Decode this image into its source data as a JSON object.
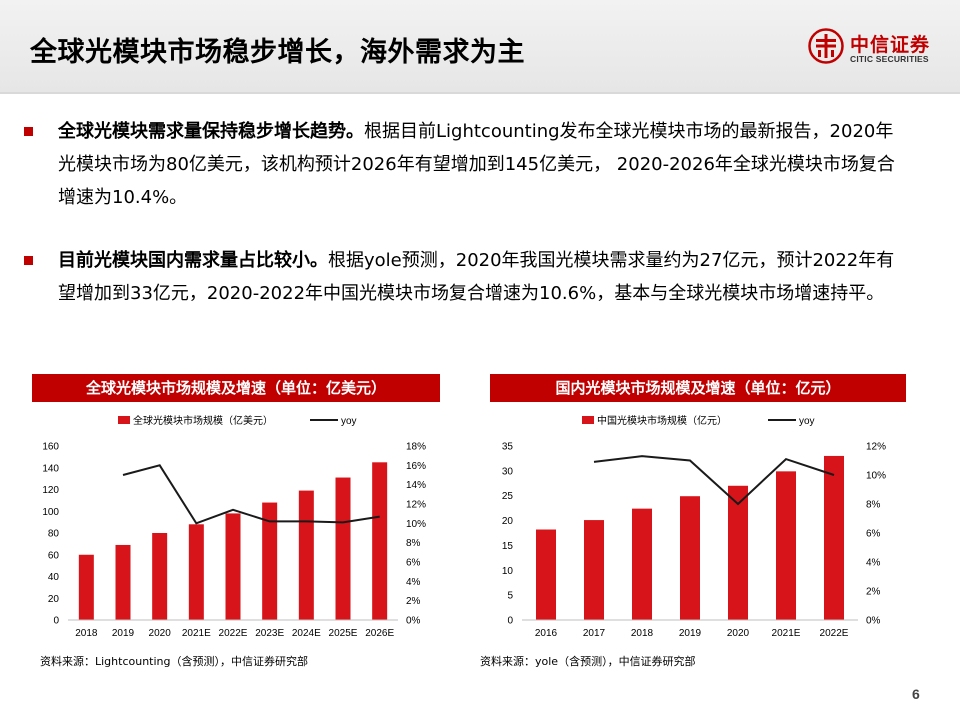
{
  "header": {
    "title": "全球光模块市场稳步增长，海外需求为主",
    "logo_cn": "中信证券",
    "logo_en": "CITIC SECURITIES"
  },
  "bullets": [
    {
      "bold": "全球光模块需求量保持稳步增长趋势。",
      "text": "根据目前Lightcounting发布全球光模块市场的最新报告，2020年光模块市场为80亿美元，该机构预计2026年有望增加到145亿美元， 2020-2026年全球光模块市场复合增速为10.4%。"
    },
    {
      "bold": "目前光模块国内需求量占比较小。",
      "text": "根据yole预测，2020年我国光模块需求量约为27亿元，预计2022年有望增加到33亿元，2020-2022年中国光模块市场复合增速为10.6%，基本与全球光模块市场增速持平。"
    }
  ],
  "chart_data": [
    {
      "type": "bar",
      "title": "全球光模块市场规模及增速（单位：亿美元）",
      "categories": [
        "2018",
        "2019",
        "2020",
        "2021E",
        "2022E",
        "2023E",
        "2024E",
        "2025E",
        "2026E"
      ],
      "series": [
        {
          "name": "全球光模块市场规模（亿美元）",
          "type": "bar",
          "axis": "left",
          "color": "#d7141a",
          "values": [
            60,
            69,
            80,
            88,
            98,
            108,
            119,
            131,
            145
          ]
        },
        {
          "name": "yoy",
          "type": "line",
          "axis": "right",
          "color": "#1a1a1a",
          "values": [
            null,
            15.0,
            16.0,
            10.0,
            11.4,
            10.2,
            10.2,
            10.1,
            10.7
          ]
        }
      ],
      "yleft": {
        "min": 0,
        "max": 160,
        "ticks": [
          "0",
          "20",
          "40",
          "60",
          "80",
          "100",
          "120",
          "140",
          "160"
        ]
      },
      "yright": {
        "min": 0,
        "max": 18,
        "ticks": [
          "0%",
          "2%",
          "4%",
          "6%",
          "8%",
          "10%",
          "12%",
          "14%",
          "16%",
          "18%"
        ]
      },
      "source": "资料来源：Lightcounting（含预测），中信证券研究部",
      "grid": false,
      "legend": "top"
    },
    {
      "type": "bar",
      "title": "国内光模块市场规模及增速（单位：亿元）",
      "categories": [
        "2016",
        "2017",
        "2018",
        "2019",
        "2020",
        "2021E",
        "2022E"
      ],
      "series": [
        {
          "name": "中国光模块市场规模（亿元）",
          "type": "bar",
          "axis": "left",
          "color": "#d7141a",
          "values": [
            18.2,
            20.1,
            22.4,
            24.9,
            27,
            29.9,
            33
          ]
        },
        {
          "name": "yoy",
          "type": "line",
          "axis": "right",
          "color": "#1a1a1a",
          "values": [
            null,
            10.9,
            11.3,
            11.0,
            8.0,
            11.1,
            10.0
          ]
        }
      ],
      "yleft": {
        "min": 0,
        "max": 35,
        "ticks": [
          "0",
          "5",
          "10",
          "15",
          "20",
          "25",
          "30",
          "35"
        ]
      },
      "yright": {
        "min": 0,
        "max": 12,
        "ticks": [
          "0%",
          "2%",
          "4%",
          "6%",
          "8%",
          "10%",
          "12%"
        ]
      },
      "source": "资料来源：yole（含预测），中信证券研究部",
      "grid": false,
      "legend": "top"
    }
  ],
  "page_number": "6"
}
